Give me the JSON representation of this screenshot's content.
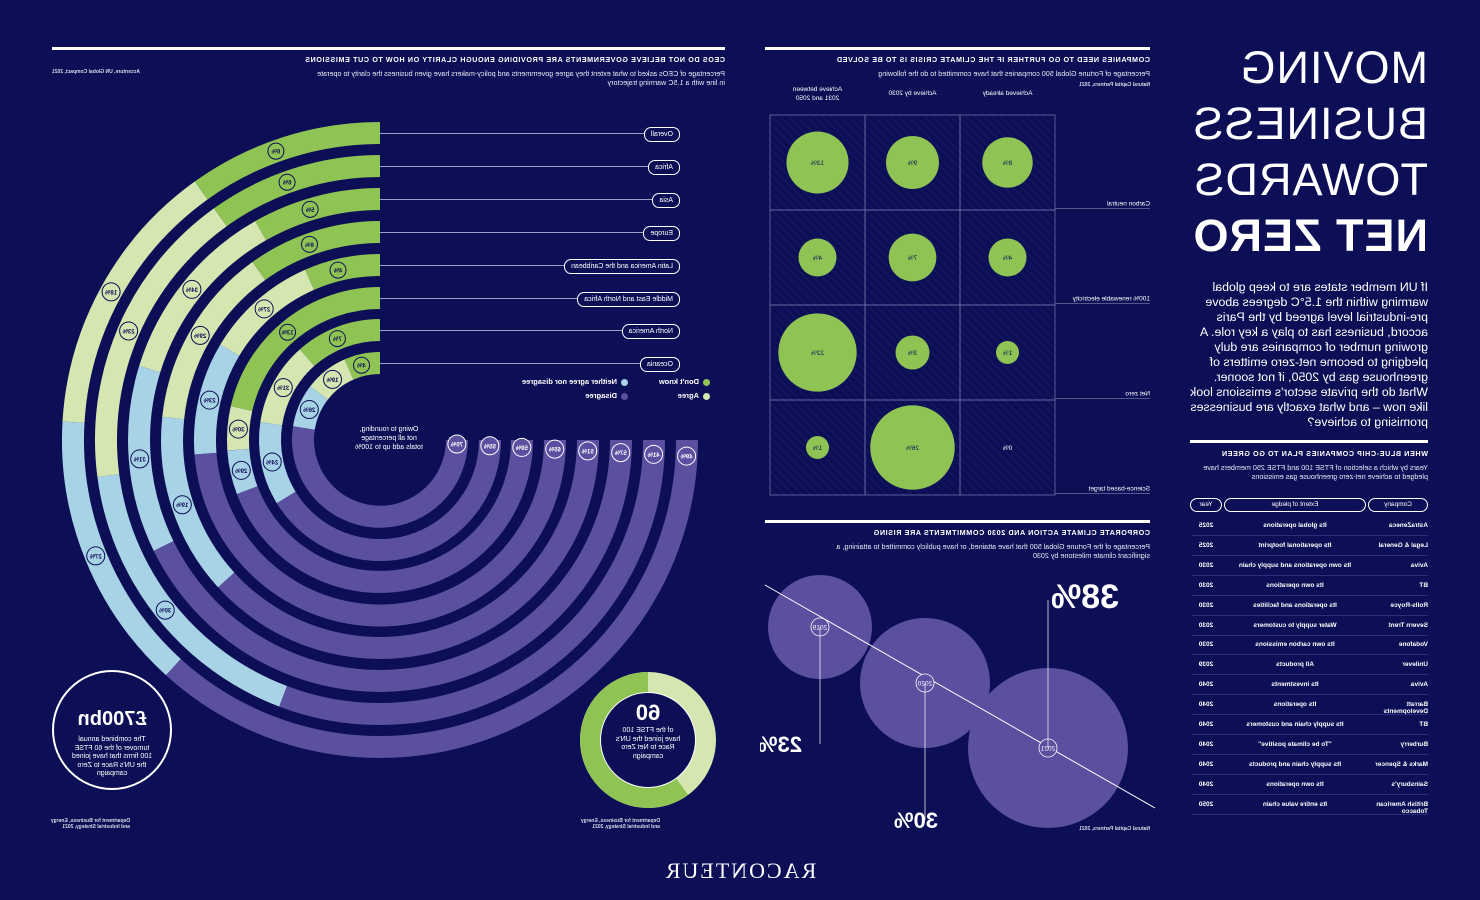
{
  "title": {
    "line1": "MOVING",
    "line2": "BUSINESS",
    "line3": "TOWARDS",
    "line4": "NET ZERO"
  },
  "intro": "If UN member states are to keep global warming within the 1.5°C degrees above pre-industrial level agreed by the Paris accord, business has to play a key role. A growing number of companies are duly pledging to become net-zero emitters of greenhouse gas by 2050, if not sooner. What do the private sector's emissions look like now – and what exactly are businesses promising to achieve?",
  "brand": "RACONTEUR",
  "ceo_section": {
    "heading": "CEOS DO NOT BELIEVE GOVERNMENTS ARE PROVIDING ENOUGH CLARITY ON HOW TO CUT EMISSIONS",
    "subheading": "Percentage of CEOs asked to what extent they agree governments and policy-makers have given business the clarity to operate in line with a 1.5C warming trajectory",
    "source": "Accenture, UN Global Compact, 2021",
    "note": "Owing to rounding, not all percentage totals add up to 100%",
    "legend": {
      "dont_know": "Don't know",
      "agree": "Agree",
      "neither": "Neither agree nor disagree",
      "disagree": "Disagree"
    },
    "regions": [
      "Overall",
      "Africa",
      "Asia",
      "Europe",
      "Latin America and the Caribbean",
      "Middle East and North Africa",
      "North America",
      "Oceania"
    ],
    "dont_know": [
      "6%",
      "6%",
      "5%",
      "6%",
      "4%",
      "13%",
      "7%",
      "4%"
    ],
    "agree": [
      "",
      "",
      "",
      "",
      "",
      "9%",
      "14%",
      "13%"
    ],
    "agree_outer": [
      "18%",
      "23%",
      "34%",
      "29%",
      "27%",
      "30%",
      "31%",
      "19%",
      "23%",
      "29%",
      "24%",
      "26%"
    ],
    "disagree": [
      "49%",
      "41%",
      "57%",
      "51%",
      "65%",
      "59%",
      "55%",
      "70%"
    ],
    "colors": {
      "dont_know": "#8fc454",
      "agree": "#d5e6b0",
      "neither": "#a8d2e6",
      "disagree": "#5b4fa0"
    }
  },
  "turnover": {
    "value": "£700bn",
    "desc": "The combined annual turnover of the 60 FTSE 100 firms that have joined the UN's Race to Zero campaign",
    "source": "Department for Business, Energy and Industrial Strategy, 2021"
  },
  "ftse": {
    "value": "60",
    "desc": "of the FTSE 100 have joined the UN's Race to Net Zero campaign",
    "source": "Department for Business, Energy and Industrial Strategy, 2021"
  },
  "companies_section": {
    "heading": "COMPANIES NEED TO GO FURTHER IF THE CLIMATE CRISIS IS TO BE SOLVED",
    "subheading": "Percentage of Fortune Global 500 companies that have committed to do the following",
    "source": "Natural Capital Partners, 2021",
    "columns": [
      "Achieved already",
      "Achieve by 2030",
      "Achieve between 2031 and 2050"
    ],
    "rows": [
      "Carbon neutral",
      "100% renewable electricity",
      "Net zero",
      "Science-based target"
    ],
    "values": [
      [
        "8%",
        "9%",
        "13%"
      ],
      [
        "4%",
        "7%",
        "4%"
      ],
      [
        "1%",
        "3%",
        "22%"
      ],
      [
        "0%",
        "26%",
        "1%"
      ]
    ]
  },
  "corporate_section": {
    "heading": "CORPORATE CLIMATE ACTION AND 2030 COMMITMENTS ARE RISING",
    "subheading": "Percentage of the Fortune Global 500 that have attained, or have publicly committed to attaining, a significant climate milestone by 2030",
    "source": "Natural Capital Partners, 2021",
    "years": [
      "2019",
      "2020",
      "2021"
    ],
    "values": [
      "23%",
      "30%",
      "38%"
    ]
  },
  "pledges_section": {
    "heading": "WHEN BLUE-CHIP COMPANIES PLAN TO GO GREEN",
    "subheading": "Years by which a selection of FTSE 100 and FTSE 250 members have pledged to achieve net-zero greenhouse gas emissions",
    "headers": {
      "company": "Company",
      "extent": "Extent of pledge",
      "year": "Year"
    },
    "rows": [
      [
        "AstraZeneca",
        "Its global operations",
        "2025"
      ],
      [
        "Legal & General",
        "Its operational footprint",
        "2025"
      ],
      [
        "Aviva",
        "Its own operations and supply chain",
        "2030"
      ],
      [
        "BT",
        "Its own operations",
        "2030"
      ],
      [
        "Rolls-Royce",
        "Its operations and facilities",
        "2030"
      ],
      [
        "Severn Trent",
        "Water supply to customers",
        "2030"
      ],
      [
        "Vodafone",
        "Its own carbon emissions",
        "2030"
      ],
      [
        "Unilever",
        "All products",
        "2039"
      ],
      [
        "Aviva",
        "Its investments",
        "2040"
      ],
      [
        "Barratt Developments",
        "Its operations",
        "2040"
      ],
      [
        "BT",
        "Its supply chain and customers",
        "2040"
      ],
      [
        "Burberry",
        "\"To be climate positive\"",
        "2040"
      ],
      [
        "Marks & Spencer",
        "Its supply chain and products",
        "2040"
      ],
      [
        "Sainsbury's",
        "Its own operations",
        "2040"
      ],
      [
        "British American Tobacco",
        "Its entire value chain",
        "2050"
      ]
    ]
  }
}
